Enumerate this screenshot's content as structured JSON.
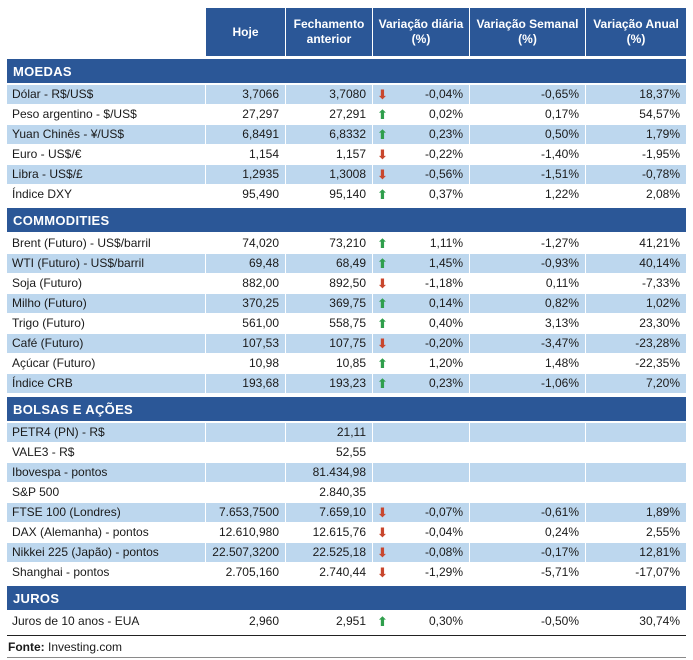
{
  "colors": {
    "header_bg": "#2B5797",
    "row_shaded": "#BDD7EE",
    "row_plain": "#FFFFFF",
    "up_arrow": "#2F9E4C",
    "down_arrow": "#C8472E",
    "header_text": "#FFFFFF",
    "body_text": "#1A1A1A"
  },
  "icons": {
    "up_arrow": "⬆",
    "down_arrow": "⬇"
  },
  "chart_data": {
    "type": "table",
    "columns": [
      "Hoje",
      "Fechamento anterior",
      "Variação diária (%)",
      "Variação Semanal (%)",
      "Variação Anual (%)"
    ],
    "sections": [
      {
        "title": "MOEDAS",
        "rows": [
          {
            "label": "Dólar - R$/US$",
            "hoje": "3,7066",
            "prev": "3,7080",
            "dir": "down",
            "daily": "-0,04%",
            "weekly": "-0,65%",
            "annual": "18,37%",
            "shaded": true
          },
          {
            "label": "Peso argentino - $/US$",
            "hoje": "27,297",
            "prev": "27,291",
            "dir": "up",
            "daily": "0,02%",
            "weekly": "0,17%",
            "annual": "54,57%",
            "shaded": false
          },
          {
            "label": "Yuan Chinês - ¥/US$",
            "hoje": "6,8491",
            "prev": "6,8332",
            "dir": "up",
            "daily": "0,23%",
            "weekly": "0,50%",
            "annual": "1,79%",
            "shaded": true
          },
          {
            "label": "Euro - US$/€",
            "hoje": "1,154",
            "prev": "1,157",
            "dir": "down",
            "daily": "-0,22%",
            "weekly": "-1,40%",
            "annual": "-1,95%",
            "shaded": false
          },
          {
            "label": "Libra - US$/£",
            "hoje": "1,2935",
            "prev": "1,3008",
            "dir": "down",
            "daily": "-0,56%",
            "weekly": "-1,51%",
            "annual": "-0,78%",
            "shaded": true
          },
          {
            "label": "Índice DXY",
            "hoje": "95,490",
            "prev": "95,140",
            "dir": "up",
            "daily": "0,37%",
            "weekly": "1,22%",
            "annual": "2,08%",
            "shaded": false
          }
        ]
      },
      {
        "title": "COMMODITIES",
        "rows": [
          {
            "label": "Brent (Futuro) - US$/barril",
            "hoje": "74,020",
            "prev": "73,210",
            "dir": "up",
            "daily": "1,11%",
            "weekly": "-1,27%",
            "annual": "41,21%",
            "shaded": false
          },
          {
            "label": "WTI (Futuro) - US$/barril",
            "hoje": "69,48",
            "prev": "68,49",
            "dir": "up",
            "daily": "1,45%",
            "weekly": "-0,93%",
            "annual": "40,14%",
            "shaded": true
          },
          {
            "label": "Soja (Futuro)",
            "hoje": "882,00",
            "prev": "892,50",
            "dir": "down",
            "daily": "-1,18%",
            "weekly": "0,11%",
            "annual": "-7,33%",
            "shaded": false
          },
          {
            "label": "Milho (Futuro)",
            "hoje": "370,25",
            "prev": "369,75",
            "dir": "up",
            "daily": "0,14%",
            "weekly": "0,82%",
            "annual": "1,02%",
            "shaded": true
          },
          {
            "label": "Trigo (Futuro)",
            "hoje": "561,00",
            "prev": "558,75",
            "dir": "up",
            "daily": "0,40%",
            "weekly": "3,13%",
            "annual": "23,30%",
            "shaded": false
          },
          {
            "label": "Café (Futuro)",
            "hoje": "107,53",
            "prev": "107,75",
            "dir": "down",
            "daily": "-0,20%",
            "weekly": "-3,47%",
            "annual": "-23,28%",
            "shaded": true
          },
          {
            "label": "Açúcar (Futuro)",
            "hoje": "10,98",
            "prev": "10,85",
            "dir": "up",
            "daily": "1,20%",
            "weekly": "1,48%",
            "annual": "-22,35%",
            "shaded": false
          },
          {
            "label": "Índice CRB",
            "hoje": "193,68",
            "prev": "193,23",
            "dir": "up",
            "daily": "0,23%",
            "weekly": "-1,06%",
            "annual": "7,20%",
            "shaded": true
          }
        ]
      },
      {
        "title": "BOLSAS E AÇÕES",
        "rows": [
          {
            "label": "PETR4 (PN) - R$",
            "hoje": "",
            "prev": "21,11",
            "dir": "",
            "daily": "",
            "weekly": "",
            "annual": "",
            "shaded": true
          },
          {
            "label": "VALE3 - R$",
            "hoje": "",
            "prev": "52,55",
            "dir": "",
            "daily": "",
            "weekly": "",
            "annual": "",
            "shaded": false
          },
          {
            "label": "Ibovespa - pontos",
            "hoje": "",
            "prev": "81.434,98",
            "dir": "",
            "daily": "",
            "weekly": "",
            "annual": "",
            "shaded": true
          },
          {
            "label": "S&P 500",
            "hoje": "",
            "prev": "2.840,35",
            "dir": "",
            "daily": "",
            "weekly": "",
            "annual": "",
            "shaded": false
          },
          {
            "label": "FTSE 100 (Londres)",
            "hoje": "7.653,7500",
            "prev": "7.659,10",
            "dir": "down",
            "daily": "-0,07%",
            "weekly": "-0,61%",
            "annual": "1,89%",
            "shaded": true
          },
          {
            "label": "DAX (Alemanha) - pontos",
            "hoje": "12.610,980",
            "prev": "12.615,76",
            "dir": "down",
            "daily": "-0,04%",
            "weekly": "0,24%",
            "annual": "2,55%",
            "shaded": false
          },
          {
            "label": "Nikkei 225 (Japão) - pontos",
            "hoje": "22.507,3200",
            "prev": "22.525,18",
            "dir": "down",
            "daily": "-0,08%",
            "weekly": "-0,17%",
            "annual": "12,81%",
            "shaded": true
          },
          {
            "label": "Shanghai - pontos",
            "hoje": "2.705,160",
            "prev": "2.740,44",
            "dir": "down",
            "daily": "-1,29%",
            "weekly": "-5,71%",
            "annual": "-17,07%",
            "shaded": false
          }
        ]
      },
      {
        "title": "JUROS",
        "rows": [
          {
            "label": "Juros de 10 anos - EUA",
            "hoje": "2,960",
            "prev": "2,951",
            "dir": "up",
            "daily": "0,30%",
            "weekly": "-0,50%",
            "annual": "30,74%",
            "shaded": false
          }
        ]
      }
    ]
  },
  "footer": {
    "source_label": "Fonte:",
    "source_value": "Investing.com"
  }
}
